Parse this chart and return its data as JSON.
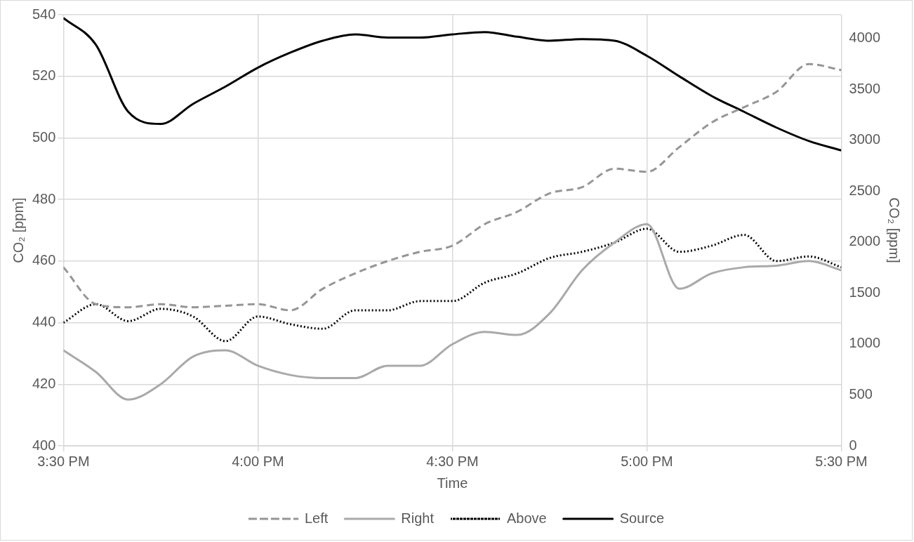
{
  "chart_data": {
    "type": "line",
    "xlabel": "Time",
    "ylabel": "CO₂ [ppm]",
    "y2label": "CO₂ [ppm]",
    "x": [
      15.5,
      15.5833,
      15.6667,
      15.75,
      15.8333,
      15.9167,
      16,
      16.0833,
      16.1667,
      16.25,
      16.3333,
      16.4167,
      16.5,
      16.5833,
      16.6667,
      16.75,
      16.8333,
      16.9167,
      17,
      17.0833,
      17.1667,
      17.25,
      17.3333,
      17.4167,
      17.5
    ],
    "xlim": [
      15.5,
      17.5
    ],
    "xticks": [
      {
        "value": 15.5,
        "label": "3:30 PM"
      },
      {
        "value": 16,
        "label": "4:00 PM"
      },
      {
        "value": 16.5,
        "label": "4:30 PM"
      },
      {
        "value": 17,
        "label": "5:00 PM"
      },
      {
        "value": 17.5,
        "label": "5:30 PM"
      }
    ],
    "ylim": [
      400,
      540
    ],
    "yticks": [
      400,
      420,
      440,
      460,
      480,
      500,
      520,
      540
    ],
    "y2lim": [
      0,
      4232
    ],
    "y2ticks": [
      0,
      500,
      1000,
      1500,
      2000,
      2500,
      3000,
      3500,
      4000
    ],
    "grid": true,
    "legend": "bottom",
    "marker": "none",
    "series": [
      {
        "name": "Left",
        "color": "#969696",
        "line_style": "dashed",
        "values": [
          458,
          446,
          445,
          446,
          445,
          445.5,
          446,
          444,
          451,
          456,
          460,
          463,
          465,
          472,
          476,
          482,
          484,
          490,
          489,
          497,
          505,
          510,
          515,
          524,
          522
        ]
      },
      {
        "name": "Right",
        "color": "#a9a9a9",
        "line_style": "solid",
        "values": [
          431,
          424,
          415,
          420,
          429,
          431,
          426,
          423,
          422,
          422,
          426,
          426,
          433,
          437,
          436,
          443,
          457,
          466,
          472,
          451,
          456,
          458,
          458.5,
          460,
          457
        ]
      },
      {
        "name": "Above",
        "color": "#000000",
        "line_style": "dotted",
        "values": [
          440,
          446,
          440.5,
          444.5,
          442,
          434,
          442,
          439.5,
          438,
          444,
          444,
          447,
          447,
          453,
          456,
          461,
          463,
          466,
          470.5,
          463,
          465,
          468.5,
          460,
          461.5,
          458
        ]
      },
      {
        "name": "Source",
        "color": "#000000",
        "line_style": "solid",
        "axis": "y2",
        "values": [
          4200,
          3938,
          3279,
          3160,
          3357,
          3527,
          3713,
          3860,
          3977,
          4039,
          4008,
          4008,
          4039,
          4062,
          4016,
          3977,
          3993,
          3977,
          3829,
          3628,
          3434,
          3279,
          3124,
          2992,
          2900
        ]
      }
    ]
  }
}
